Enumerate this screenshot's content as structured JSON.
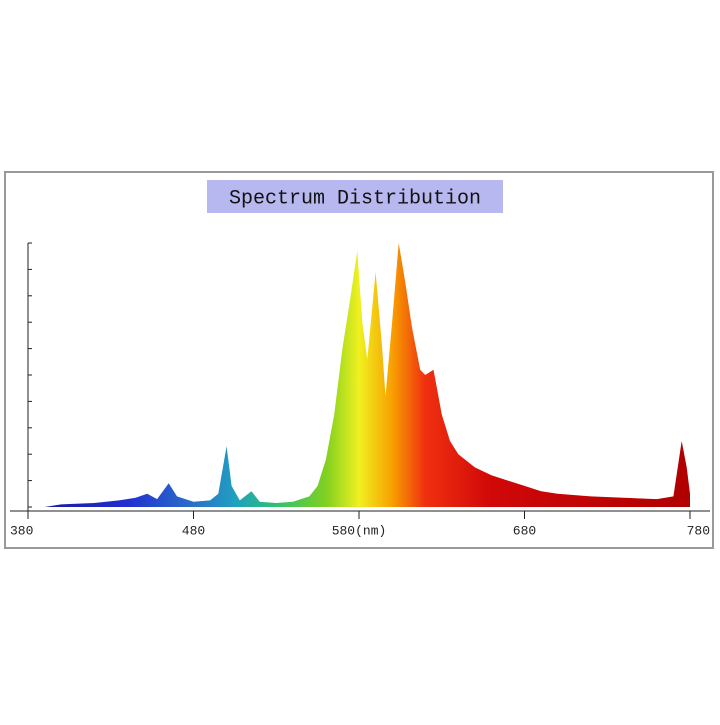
{
  "chart_data": {
    "type": "area",
    "title": "Spectrum Distribution",
    "x": [
      390,
      400,
      420,
      435,
      445,
      452,
      458,
      465,
      470,
      480,
      490,
      495,
      500,
      503,
      508,
      515,
      520,
      530,
      540,
      550,
      555,
      560,
      565,
      570,
      575,
      579,
      582,
      585,
      590,
      594,
      596,
      600,
      604,
      608,
      612,
      617,
      620,
      625,
      630,
      635,
      640,
      650,
      660,
      670,
      680,
      690,
      700,
      720,
      740,
      760,
      770,
      775,
      778,
      780
    ],
    "values": [
      0,
      1,
      1.5,
      2.5,
      3.5,
      5,
      3,
      9,
      4,
      2,
      2.5,
      5,
      23,
      8,
      2.5,
      6,
      2,
      1.5,
      2,
      4,
      8,
      18,
      35,
      60,
      80,
      97,
      70,
      56,
      89,
      60,
      42,
      70,
      100,
      85,
      68,
      52,
      50,
      52,
      35,
      25,
      20,
      15,
      12,
      10,
      8,
      6,
      5,
      4,
      3.5,
      3,
      4,
      25,
      15,
      5
    ],
    "color_stops": [
      {
        "x": 390,
        "color": "#1a1aa0"
      },
      {
        "x": 440,
        "color": "#2030d0"
      },
      {
        "x": 480,
        "color": "#2a70c8"
      },
      {
        "x": 505,
        "color": "#20a0c0"
      },
      {
        "x": 530,
        "color": "#30c070"
      },
      {
        "x": 560,
        "color": "#80d020"
      },
      {
        "x": 580,
        "color": "#f0f020"
      },
      {
        "x": 600,
        "color": "#f8a000"
      },
      {
        "x": 620,
        "color": "#f03010"
      },
      {
        "x": 660,
        "color": "#d00808"
      },
      {
        "x": 780,
        "color": "#b00000"
      }
    ],
    "xlim": [
      380,
      780
    ],
    "ylim": [
      0,
      100
    ],
    "xticks": [
      380,
      480,
      {
        "value": 580,
        "label": "580(nm)"
      },
      680,
      780
    ],
    "yticks": [
      0,
      10,
      20,
      30,
      40,
      50,
      60,
      70,
      80,
      90,
      100
    ]
  }
}
